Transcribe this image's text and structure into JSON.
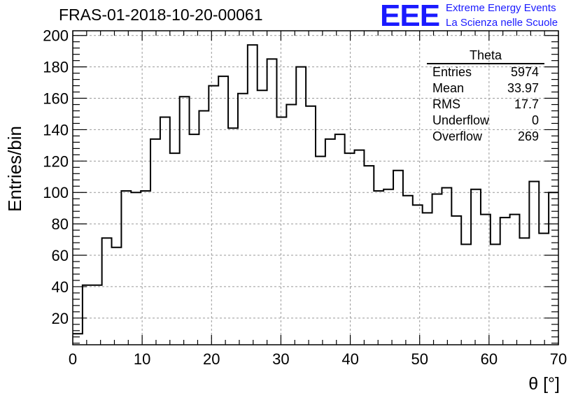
{
  "header": {
    "title": "FRAS-01-2018-10-20-00061",
    "logo_text": "EEE",
    "logo_line1": "Extreme Energy Events",
    "logo_line2": "La Scienza nelle Scuole",
    "logo_color": "#1a1aff"
  },
  "stats_box": {
    "name": "Theta",
    "rows": [
      {
        "label": "Entries",
        "value": "5974"
      },
      {
        "label": "Mean",
        "value": "33.97"
      },
      {
        "label": "RMS",
        "value": "17.7"
      },
      {
        "label": "Underflow",
        "value": "0"
      },
      {
        "label": "Overflow",
        "value": "269"
      }
    ]
  },
  "chart_data": {
    "type": "histogram",
    "xlabel": "θ [°]",
    "ylabel": "Entries/bin",
    "xlim": [
      0,
      70
    ],
    "ylim": [
      3,
      203
    ],
    "xticks": [
      0,
      10,
      20,
      30,
      40,
      50,
      60,
      70
    ],
    "yticks": [
      20,
      40,
      60,
      80,
      100,
      120,
      140,
      160,
      180,
      200
    ],
    "grid": true,
    "bin_width": 1.4,
    "bin_edges_start": 0,
    "values": [
      10,
      41,
      41,
      71,
      65,
      101,
      100,
      101,
      134,
      148,
      125,
      161,
      137,
      152,
      168,
      174,
      141,
      163,
      194,
      165,
      185,
      148,
      156,
      180,
      155,
      123,
      134,
      137,
      125,
      127,
      117,
      101,
      102,
      114,
      98,
      92,
      87,
      99,
      103,
      85,
      67,
      102,
      86,
      67,
      84,
      86,
      71,
      107,
      74,
      100
    ]
  }
}
